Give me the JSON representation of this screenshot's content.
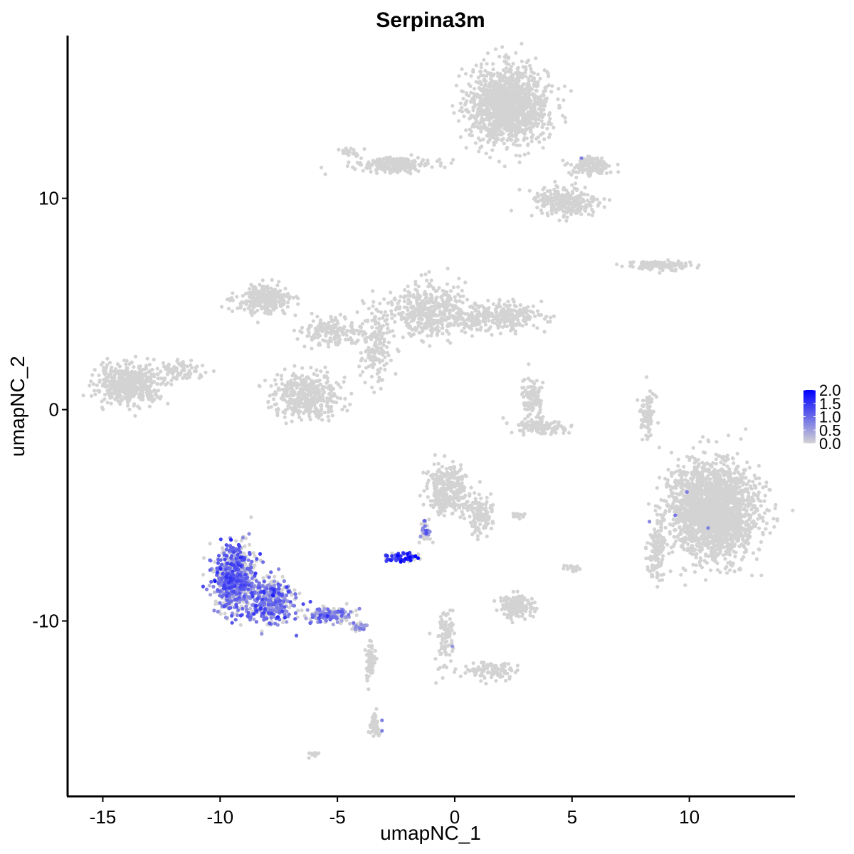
{
  "chart_data": {
    "type": "scatter",
    "title": "Serpina3m",
    "xlabel": "umapNC_1",
    "ylabel": "umapNC_2",
    "xlim": [
      -16.5,
      14.5
    ],
    "ylim": [
      -18.3,
      17.7
    ],
    "x_ticks": [
      -15,
      -10,
      -5,
      0,
      5,
      10
    ],
    "x_tick_labels": [
      "-15",
      "-10",
      "-5",
      "0",
      "5",
      "10"
    ],
    "y_ticks": [
      10,
      0,
      -10
    ],
    "y_tick_labels": [
      "10",
      "0",
      "-10"
    ],
    "grid": false,
    "legend_position": "right",
    "color_scale": {
      "low_color": "#d3d3d3",
      "high_color": "#0000ff",
      "min": 0.0,
      "max": 2.0,
      "ticks": [
        2.0,
        1.5,
        1.0,
        0.5,
        0.0
      ],
      "tick_labels": [
        "2.0",
        "1.5",
        "1.0",
        "0.5",
        "0.0"
      ]
    },
    "clusters": [
      {
        "center": [
          2.3,
          14.4
        ],
        "spread": [
          1.5,
          1.6
        ],
        "n": 1400,
        "expression": 0
      },
      {
        "center": [
          -2.5,
          11.6
        ],
        "spread": [
          1.4,
          0.3
        ],
        "n": 220,
        "expression": 0
      },
      {
        "center": [
          4.7,
          9.8
        ],
        "spread": [
          1.3,
          0.7
        ],
        "n": 260,
        "expression": 0
      },
      {
        "center": [
          5.8,
          11.5
        ],
        "spread": [
          0.8,
          0.4
        ],
        "n": 140,
        "expression": 0
      },
      {
        "center": [
          -8.1,
          5.2
        ],
        "spread": [
          1.1,
          0.6
        ],
        "n": 260,
        "expression": 0
      },
      {
        "center": [
          -5.3,
          3.7
        ],
        "spread": [
          1.1,
          0.6
        ],
        "n": 160,
        "expression": 0
      },
      {
        "center": [
          -3.3,
          3.2
        ],
        "spread": [
          0.6,
          1.8
        ],
        "n": 180,
        "expression": 0
      },
      {
        "center": [
          -1.2,
          4.7
        ],
        "spread": [
          1.3,
          1.2
        ],
        "n": 380,
        "expression": 0
      },
      {
        "center": [
          1.6,
          4.4
        ],
        "spread": [
          1.9,
          0.6
        ],
        "n": 320,
        "expression": 0
      },
      {
        "center": [
          -6.3,
          0.7
        ],
        "spread": [
          1.3,
          0.9
        ],
        "n": 420,
        "expression": 0
      },
      {
        "center": [
          -13.9,
          1.2
        ],
        "spread": [
          1.3,
          0.8
        ],
        "n": 500,
        "expression": 0
      },
      {
        "center": [
          -11.8,
          1.8
        ],
        "spread": [
          0.9,
          0.4
        ],
        "n": 80,
        "expression": 0
      },
      {
        "center": [
          3.3,
          0.6
        ],
        "spread": [
          0.4,
          0.9
        ],
        "n": 100,
        "expression": 0
      },
      {
        "center": [
          3.7,
          -0.8
        ],
        "spread": [
          1.0,
          0.3
        ],
        "n": 120,
        "expression": 0
      },
      {
        "center": [
          8.8,
          6.8
        ],
        "spread": [
          1.2,
          0.2
        ],
        "n": 120,
        "expression": 0
      },
      {
        "center": [
          8.2,
          -0.2
        ],
        "spread": [
          0.3,
          1.1
        ],
        "n": 80,
        "expression": 0
      },
      {
        "center": [
          11.0,
          -4.8
        ],
        "spread": [
          1.7,
          2.0
        ],
        "n": 2000,
        "expression": 0
      },
      {
        "center": [
          8.6,
          -6.5
        ],
        "spread": [
          0.4,
          1.3
        ],
        "n": 120,
        "expression": 0
      },
      {
        "center": [
          -0.3,
          -3.8
        ],
        "spread": [
          0.8,
          1.0
        ],
        "n": 300,
        "expression": 0
      },
      {
        "center": [
          1.1,
          -5.0
        ],
        "spread": [
          0.5,
          0.8
        ],
        "n": 120,
        "expression": 0
      },
      {
        "center": [
          -1.3,
          -5.8
        ],
        "spread": [
          0.2,
          0.5
        ],
        "n": 40,
        "expression": 0.6
      },
      {
        "center": [
          2.6,
          -9.3
        ],
        "spread": [
          0.6,
          0.5
        ],
        "n": 160,
        "expression": 0
      },
      {
        "center": [
          2.7,
          -5.0
        ],
        "spread": [
          0.4,
          0.1
        ],
        "n": 20,
        "expression": 0
      },
      {
        "center": [
          5.0,
          -7.5
        ],
        "spread": [
          0.3,
          0.2
        ],
        "n": 20,
        "expression": 0
      },
      {
        "center": [
          -0.4,
          -10.8
        ],
        "spread": [
          0.4,
          1.2
        ],
        "n": 90,
        "expression": 0
      },
      {
        "center": [
          1.6,
          -12.4
        ],
        "spread": [
          1.2,
          0.4
        ],
        "n": 100,
        "expression": 0
      },
      {
        "center": [
          -9.4,
          -8.0
        ],
        "spread": [
          0.8,
          1.4
        ],
        "n": 700,
        "expression": 0.9
      },
      {
        "center": [
          -7.8,
          -9.1
        ],
        "spread": [
          0.9,
          0.9
        ],
        "n": 400,
        "expression": 0.8
      },
      {
        "center": [
          -5.3,
          -9.7
        ],
        "spread": [
          0.8,
          0.3
        ],
        "n": 150,
        "expression": 0.7
      },
      {
        "center": [
          -4.1,
          -10.3
        ],
        "spread": [
          0.3,
          0.2
        ],
        "n": 40,
        "expression": 0.3
      },
      {
        "center": [
          -3.6,
          -12.0
        ],
        "spread": [
          0.2,
          0.8
        ],
        "n": 60,
        "expression": 0
      },
      {
        "center": [
          -3.4,
          -14.9
        ],
        "spread": [
          0.2,
          0.5
        ],
        "n": 60,
        "expression": 0
      },
      {
        "center": [
          -2.6,
          -7.0
        ],
        "spread": [
          0.4,
          0.2
        ],
        "n": 35,
        "expression": 1.4
      },
      {
        "center": [
          -1.9,
          -7.0
        ],
        "spread": [
          0.4,
          0.2
        ],
        "n": 30,
        "expression": 1.6
      },
      {
        "center": [
          -6.0,
          -16.3
        ],
        "spread": [
          0.2,
          0.1
        ],
        "n": 10,
        "expression": 0
      },
      {
        "center": [
          -4.5,
          12.2
        ],
        "spread": [
          0.4,
          0.2
        ],
        "n": 20,
        "expression": 0
      }
    ],
    "highlighted_points": [
      {
        "x": -2.3,
        "y": -7.2,
        "value": 2.0
      },
      {
        "x": 5.4,
        "y": 11.9,
        "value": 0.8
      },
      {
        "x": 9.9,
        "y": -3.9,
        "value": 0.8
      },
      {
        "x": 9.4,
        "y": -5.0,
        "value": 0.9
      },
      {
        "x": 10.8,
        "y": -5.6,
        "value": 0.8
      },
      {
        "x": 8.3,
        "y": -5.3,
        "value": 0.7
      },
      {
        "x": -3.1,
        "y": -14.7,
        "value": 0.8
      },
      {
        "x": -3.1,
        "y": -15.2,
        "value": 0.8
      },
      {
        "x": -0.1,
        "y": -11.2,
        "value": 0.6
      }
    ]
  }
}
